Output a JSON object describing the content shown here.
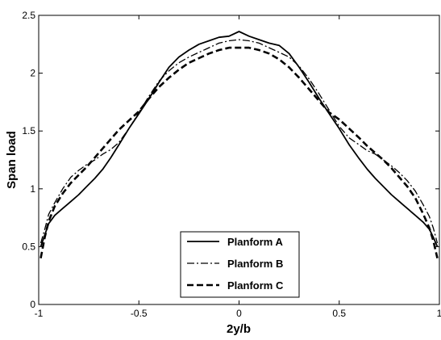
{
  "chart_data": {
    "type": "line",
    "title": "",
    "xlabel": "2y/b",
    "ylabel": "Span load",
    "xlim": [
      -1,
      1
    ],
    "ylim": [
      0,
      2.5
    ],
    "xticks": [
      -1,
      -0.5,
      0,
      0.5,
      1
    ],
    "xtick_labels": [
      "-1",
      "-0.5",
      "0",
      "0.5",
      "1"
    ],
    "yticks": [
      0,
      0.5,
      1,
      1.5,
      2,
      2.5
    ],
    "ytick_labels": [
      "0",
      "0.5",
      "1",
      "1.5",
      "2",
      "2.5"
    ],
    "grid": false,
    "legend_position": "bottom-center",
    "series": [
      {
        "name": "Planform A",
        "style": "solid",
        "color": "#000000",
        "x": [
          -0.99,
          -0.97,
          -0.95,
          -0.92,
          -0.88,
          -0.84,
          -0.8,
          -0.76,
          -0.72,
          -0.68,
          -0.64,
          -0.6,
          -0.55,
          -0.5,
          -0.45,
          -0.4,
          -0.35,
          -0.3,
          -0.25,
          -0.2,
          -0.15,
          -0.1,
          -0.05,
          0,
          0.05,
          0.1,
          0.15,
          0.2,
          0.25,
          0.3,
          0.35,
          0.4,
          0.45,
          0.5,
          0.55,
          0.6,
          0.64,
          0.68,
          0.72,
          0.76,
          0.8,
          0.84,
          0.88,
          0.92,
          0.95,
          0.97,
          0.99
        ],
        "y": [
          0.5,
          0.6,
          0.7,
          0.77,
          0.83,
          0.89,
          0.95,
          1.02,
          1.09,
          1.17,
          1.27,
          1.38,
          1.52,
          1.65,
          1.78,
          1.92,
          2.05,
          2.14,
          2.2,
          2.25,
          2.28,
          2.31,
          2.32,
          2.36,
          2.32,
          2.29,
          2.26,
          2.24,
          2.17,
          2.05,
          1.92,
          1.78,
          1.65,
          1.52,
          1.38,
          1.26,
          1.17,
          1.09,
          1.02,
          0.95,
          0.89,
          0.83,
          0.77,
          0.71,
          0.65,
          0.58,
          0.5
        ]
      },
      {
        "name": "Planform B",
        "style": "dash-dot",
        "color": "#000000",
        "x": [
          -0.99,
          -0.97,
          -0.95,
          -0.92,
          -0.88,
          -0.84,
          -0.8,
          -0.76,
          -0.72,
          -0.68,
          -0.64,
          -0.6,
          -0.55,
          -0.5,
          -0.45,
          -0.4,
          -0.35,
          -0.3,
          -0.25,
          -0.2,
          -0.15,
          -0.1,
          -0.05,
          0,
          0.05,
          0.1,
          0.15,
          0.2,
          0.25,
          0.3,
          0.35,
          0.4,
          0.45,
          0.5,
          0.55,
          0.6,
          0.64,
          0.68,
          0.72,
          0.76,
          0.8,
          0.84,
          0.88,
          0.92,
          0.95,
          0.97,
          0.99
        ],
        "y": [
          0.53,
          0.65,
          0.78,
          0.88,
          1.0,
          1.1,
          1.16,
          1.21,
          1.25,
          1.3,
          1.34,
          1.4,
          1.52,
          1.66,
          1.8,
          1.93,
          2.02,
          2.09,
          2.14,
          2.18,
          2.22,
          2.26,
          2.28,
          2.29,
          2.28,
          2.26,
          2.22,
          2.18,
          2.14,
          2.06,
          1.95,
          1.82,
          1.68,
          1.54,
          1.44,
          1.38,
          1.33,
          1.3,
          1.25,
          1.2,
          1.14,
          1.07,
          0.98,
          0.86,
          0.76,
          0.66,
          0.53
        ]
      },
      {
        "name": "Planform C",
        "style": "dashed",
        "color": "#000000",
        "x": [
          -0.99,
          -0.97,
          -0.95,
          -0.92,
          -0.88,
          -0.84,
          -0.8,
          -0.76,
          -0.72,
          -0.68,
          -0.64,
          -0.6,
          -0.55,
          -0.5,
          -0.45,
          -0.4,
          -0.35,
          -0.3,
          -0.25,
          -0.2,
          -0.15,
          -0.1,
          -0.05,
          0,
          0.05,
          0.1,
          0.15,
          0.2,
          0.25,
          0.3,
          0.35,
          0.4,
          0.45,
          0.5,
          0.55,
          0.6,
          0.64,
          0.68,
          0.72,
          0.76,
          0.8,
          0.84,
          0.88,
          0.92,
          0.95,
          0.97,
          0.99
        ],
        "y": [
          0.4,
          0.58,
          0.72,
          0.85,
          0.96,
          1.05,
          1.12,
          1.19,
          1.27,
          1.35,
          1.43,
          1.51,
          1.59,
          1.67,
          1.78,
          1.88,
          1.96,
          2.03,
          2.09,
          2.13,
          2.17,
          2.2,
          2.22,
          2.22,
          2.22,
          2.2,
          2.17,
          2.12,
          2.05,
          1.96,
          1.86,
          1.76,
          1.66,
          1.6,
          1.52,
          1.44,
          1.37,
          1.31,
          1.25,
          1.18,
          1.1,
          1.02,
          0.92,
          0.78,
          0.66,
          0.55,
          0.4
        ]
      }
    ]
  }
}
